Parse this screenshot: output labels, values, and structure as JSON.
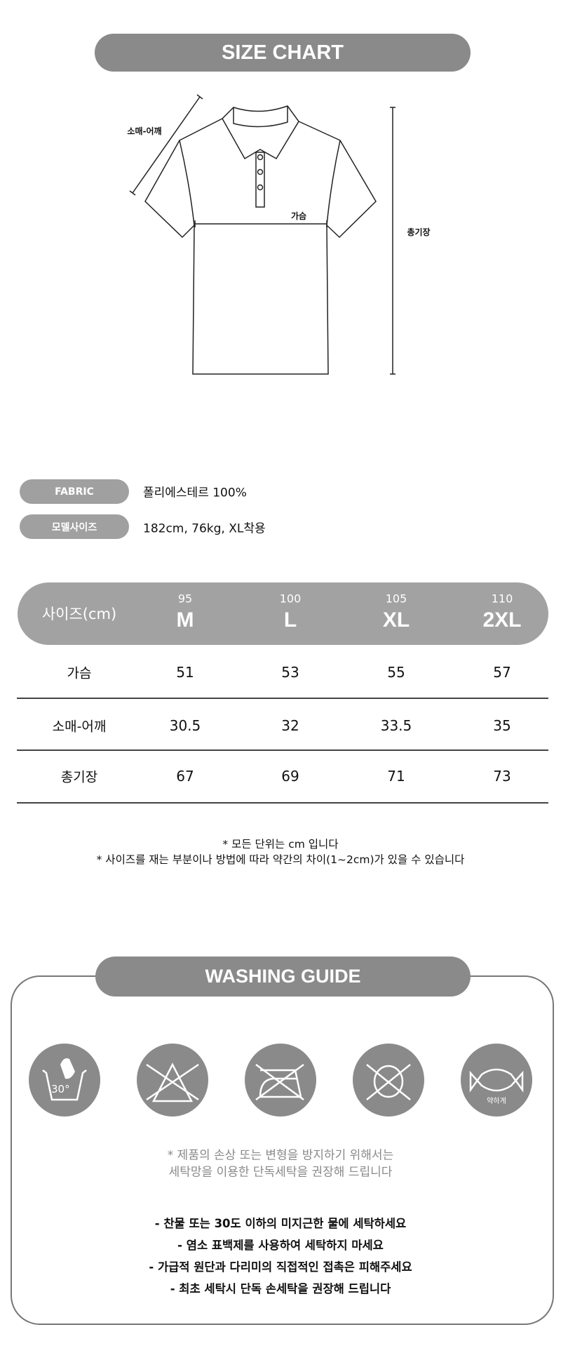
{
  "size_chart": {
    "title": "SIZE CHART",
    "diagram_labels": {
      "sleeve_shoulder": "소매-어깨",
      "chest": "가슴",
      "total_length": "총기장"
    }
  },
  "specs": [
    {
      "label": "FABRIC",
      "value": "폴리에스테르 100%"
    },
    {
      "label": "모델사이즈",
      "value": "182cm, 76kg, XL착용"
    }
  ],
  "table": {
    "header_label": "사이즈(cm)",
    "sizes": [
      {
        "num": "95",
        "size": "M"
      },
      {
        "num": "100",
        "size": "L"
      },
      {
        "num": "105",
        "size": "XL"
      },
      {
        "num": "110",
        "size": "2XL"
      }
    ],
    "rows": [
      {
        "label": "가슴",
        "values": [
          "51",
          "53",
          "55",
          "57"
        ]
      },
      {
        "label": "소매-어깨",
        "values": [
          "30.5",
          "32",
          "33.5",
          "35"
        ]
      },
      {
        "label": "총기장",
        "values": [
          "67",
          "69",
          "71",
          "73"
        ]
      }
    ]
  },
  "notes": [
    "* 모든 단위는 cm 입니다",
    "* 사이즈를 재는 부분이나 방법에 따라 약간의 차이(1~2cm)가 있을 수 있습니다"
  ],
  "washing": {
    "title": "WASHING GUIDE",
    "icons": [
      {
        "name": "hand-wash-30-icon",
        "text": "30°"
      },
      {
        "name": "no-bleach-icon"
      },
      {
        "name": "no-iron-icon"
      },
      {
        "name": "no-tumble-dry-icon"
      },
      {
        "name": "gentle-wring-icon",
        "text": "약하게"
      }
    ],
    "caution": [
      "* 제품의 손상 또는 변형을 방지하기 위해서는",
      "세탁망을 이용한 단독세탁을 권장해 드립니다"
    ],
    "bullets": [
      "- 찬물 또는 30도 이하의 미지근한 물에 세탁하세요",
      "- 염소 표백제를 사용하여 세탁하지 마세요",
      "- 가급적 원단과 다리미의 직접적인 접촉은 피해주세요",
      "- 최초 세탁시 단독 손세탁을 권장해 드립니다"
    ]
  },
  "colors": {
    "pill": "#8a8a8a",
    "table_header": "#a2a2a2",
    "text": "#111111",
    "note_gray": "#8a8a8a"
  }
}
